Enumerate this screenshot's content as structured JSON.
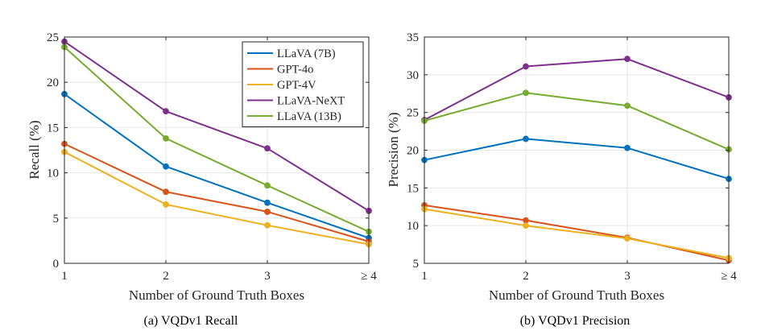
{
  "chart_data": [
    {
      "type": "line",
      "caption": "(a) VQDv1 Recall",
      "title": "",
      "xlabel": "Number of Ground Truth Boxes",
      "ylabel": "Recall (%)",
      "categories": [
        "1",
        "2",
        "3",
        "≥ 4"
      ],
      "ylim": [
        0,
        25
      ],
      "yticks": [
        "0",
        "5",
        "10",
        "15",
        "20",
        "25"
      ],
      "grid": true,
      "legend_position": "top-right",
      "series": [
        {
          "name": "LLaVA (7B)",
          "color": "#0072BD",
          "values": [
            18.7,
            10.7,
            6.7,
            2.8
          ]
        },
        {
          "name": "GPT-4o",
          "color": "#D95319",
          "values": [
            13.2,
            7.9,
            5.7,
            2.4
          ]
        },
        {
          "name": "GPT-4V",
          "color": "#EDB120",
          "values": [
            12.3,
            6.5,
            4.2,
            2.1
          ]
        },
        {
          "name": "LLaVA-NeXT",
          "color": "#7E2F8E",
          "values": [
            24.5,
            16.8,
            12.7,
            5.8
          ]
        },
        {
          "name": "LLaVA (13B)",
          "color": "#77AC30",
          "values": [
            23.9,
            13.8,
            8.6,
            3.5
          ]
        }
      ]
    },
    {
      "type": "line",
      "caption": "(b) VQDv1 Precision",
      "title": "",
      "xlabel": "Number of Ground Truth Boxes",
      "ylabel": "Precision (%)",
      "categories": [
        "1",
        "2",
        "3",
        "≥ 4"
      ],
      "ylim": [
        5,
        35
      ],
      "yticks": [
        "5",
        "10",
        "15",
        "20",
        "25",
        "30",
        "35"
      ],
      "grid": true,
      "series": [
        {
          "name": "LLaVA (7B)",
          "color": "#0072BD",
          "values": [
            18.7,
            21.5,
            20.3,
            16.2
          ]
        },
        {
          "name": "GPT-4o",
          "color": "#D95319",
          "values": [
            12.7,
            10.7,
            8.4,
            5.4
          ]
        },
        {
          "name": "GPT-4V",
          "color": "#EDB120",
          "values": [
            12.2,
            10.0,
            8.3,
            5.7
          ]
        },
        {
          "name": "LLaVA-NeXT",
          "color": "#7E2F8E",
          "values": [
            24.0,
            31.1,
            32.1,
            27.0
          ]
        },
        {
          "name": "LLaVA (13B)",
          "color": "#77AC30",
          "values": [
            23.9,
            27.6,
            25.9,
            20.1
          ]
        }
      ]
    }
  ]
}
